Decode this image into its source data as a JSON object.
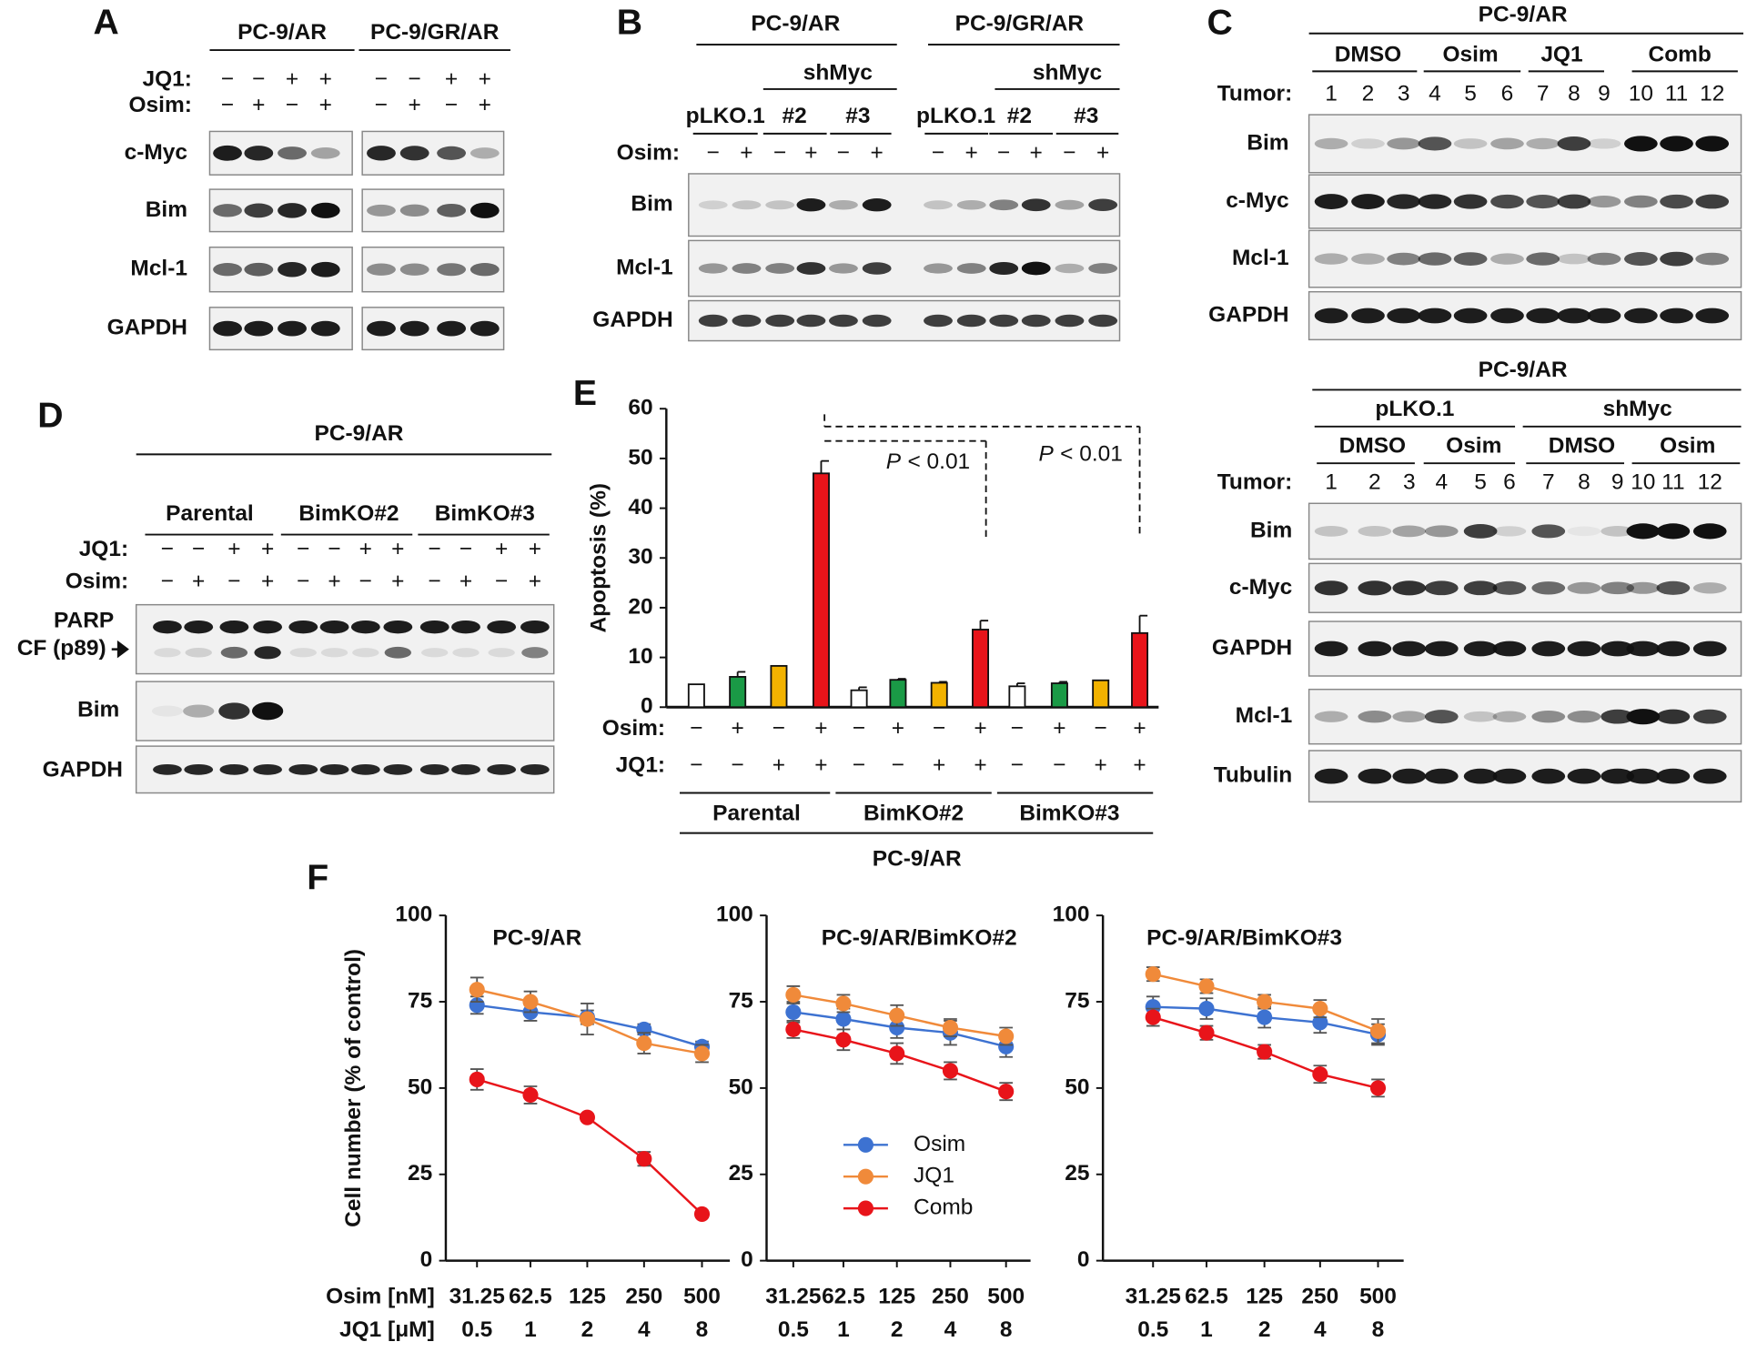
{
  "panel_labels": [
    "A",
    "B",
    "C",
    "D",
    "E",
    "F"
  ],
  "panel_a": {
    "groups": [
      "PC-9/AR",
      "PC-9/GR/AR"
    ],
    "row_labels": [
      "JQ1:",
      "Osim:"
    ],
    "jq1": [
      "−",
      "−",
      "+",
      "+",
      "−",
      "−",
      "+",
      "+"
    ],
    "osim": [
      "−",
      "+",
      "−",
      "+",
      "−",
      "+",
      "−",
      "+"
    ],
    "blots": [
      "c-Myc",
      "Bim",
      "Mcl-1",
      "GAPDH"
    ]
  },
  "panel_b": {
    "groups": [
      "PC-9/AR",
      "PC-9/GR/AR"
    ],
    "subgroups": [
      "shMyc",
      "shMyc"
    ],
    "constructs": [
      "pLKO.1",
      "#2",
      "#3",
      "pLKO.1",
      "#2",
      "#3"
    ],
    "row_label": "Osim:",
    "osim": [
      "−",
      "+",
      "−",
      "+",
      "−",
      "+",
      "−",
      "+",
      "−",
      "+",
      "−",
      "+"
    ],
    "blots": [
      "Bim",
      "Mcl-1",
      "GAPDH"
    ]
  },
  "panel_c_top": {
    "title": "PC-9/AR",
    "groups": [
      "DMSO",
      "Osim",
      "JQ1",
      "Comb"
    ],
    "row_label": "Tumor:",
    "tumors": [
      1,
      2,
      3,
      4,
      5,
      6,
      7,
      8,
      9,
      10,
      11,
      12
    ],
    "blots": [
      "Bim",
      "c-Myc",
      "Mcl-1",
      "GAPDH"
    ]
  },
  "panel_c_bottom": {
    "title": "PC-9/AR",
    "groups": [
      "pLKO.1",
      "shMyc"
    ],
    "treatments": [
      "DMSO",
      "Osim",
      "DMSO",
      "Osim"
    ],
    "row_label": "Tumor:",
    "tumors": [
      1,
      2,
      3,
      4,
      5,
      6,
      7,
      8,
      9,
      10,
      11,
      12
    ],
    "blots": [
      "Bim",
      "c-Myc",
      "GAPDH",
      "Mcl-1",
      "Tubulin"
    ]
  },
  "panel_d": {
    "title": "PC-9/AR",
    "groups": [
      "Parental",
      "BimKO#2",
      "BimKO#3"
    ],
    "row_labels": [
      "JQ1:",
      "Osim:"
    ],
    "jq1": [
      "−",
      "−",
      "+",
      "+",
      "−",
      "−",
      "+",
      "+",
      "−",
      "−",
      "+",
      "+"
    ],
    "osim": [
      "−",
      "+",
      "−",
      "+",
      "−",
      "+",
      "−",
      "+",
      "−",
      "+",
      "−",
      "+"
    ],
    "blots": [
      "PARP",
      "CF (p89)",
      "Bim",
      "GAPDH"
    ]
  },
  "chart_data": [
    {
      "type": "bar",
      "ylabel": "Apoptosis (%)",
      "values": [
        4.6,
        6.1,
        8.3,
        47,
        3.4,
        5.5,
        4.9,
        15.6,
        4.2,
        4.8,
        5.4,
        14.9
      ],
      "errors": [
        0,
        1.0,
        0,
        2.5,
        0.6,
        0.2,
        0.2,
        1.8,
        0.6,
        0.3,
        0,
        3.5
      ],
      "colors": [
        "#ffffff",
        "#1a9a46",
        "#f2b200",
        "#e8141a",
        "#ffffff",
        "#1a9a46",
        "#f2b200",
        "#e8141a",
        "#ffffff",
        "#1a9a46",
        "#f2b200",
        "#e8141a"
      ],
      "ylim": [
        0,
        60
      ],
      "yticks": [
        0,
        10,
        20,
        30,
        40,
        50,
        60
      ],
      "row_labels": [
        "Osim:",
        "JQ1:"
      ],
      "osim": [
        "−",
        "+",
        "−",
        "+",
        "−",
        "+",
        "−",
        "+",
        "−",
        "+",
        "−",
        "+"
      ],
      "jq1": [
        "−",
        "−",
        "+",
        "+",
        "−",
        "−",
        "+",
        "+",
        "−",
        "−",
        "+",
        "+"
      ],
      "groups": [
        "Parental",
        "BimKO#2",
        "BimKO#3"
      ],
      "group_title": "PC-9/AR",
      "annotations": [
        {
          "italic": "P",
          "text": "< 0.01"
        },
        {
          "italic": "P",
          "text": "< 0.01"
        }
      ]
    },
    {
      "type": "line",
      "title": "PC-9/AR",
      "ylabel": "Cell number (% of control)",
      "categories": [
        "31.25",
        "62.5",
        "125",
        "250",
        "500"
      ],
      "categories2": [
        "0.5",
        "1",
        "2",
        "4",
        "8"
      ],
      "series": [
        {
          "name": "Osim",
          "color": "#3d72d1",
          "values": [
            74,
            72,
            70.5,
            67,
            62
          ],
          "errors": [
            2.5,
            2.5,
            2,
            1.5,
            1.5
          ]
        },
        {
          "name": "JQ1",
          "color": "#f08a3a",
          "values": [
            78.5,
            75,
            70,
            63,
            60
          ],
          "errors": [
            3.5,
            3,
            4.5,
            3,
            2.5
          ]
        },
        {
          "name": "Comb",
          "color": "#e8141a",
          "values": [
            52.5,
            48,
            41.5,
            29.5,
            13.5
          ],
          "errors": [
            3,
            2.5,
            1,
            2,
            1
          ]
        }
      ],
      "ylim": [
        0,
        100
      ],
      "yticks": [
        0,
        25,
        50,
        75,
        100
      ]
    },
    {
      "type": "line",
      "title": "PC-9/AR/BimKO#2",
      "categories": [
        "31.25",
        "62.5",
        "125",
        "250",
        "500"
      ],
      "categories2": [
        "0.5",
        "1",
        "2",
        "4",
        "8"
      ],
      "series": [
        {
          "name": "Osim",
          "color": "#3d72d1",
          "values": [
            72,
            70,
            67.5,
            66,
            62
          ],
          "errors": [
            3,
            3,
            3,
            3.5,
            3
          ]
        },
        {
          "name": "JQ1",
          "color": "#f08a3a",
          "values": [
            77,
            74.5,
            71,
            67.5,
            65
          ],
          "errors": [
            2.5,
            2.5,
            3,
            2.5,
            2.5
          ]
        },
        {
          "name": "Comb",
          "color": "#e8141a",
          "values": [
            67,
            64,
            60,
            55,
            49
          ],
          "errors": [
            2.5,
            3,
            3,
            2.5,
            2.5
          ]
        }
      ],
      "ylim": [
        0,
        100
      ],
      "yticks": [
        0,
        25,
        50,
        75,
        100
      ],
      "legend": "center"
    },
    {
      "type": "line",
      "title": "PC-9/AR/BimKO#3",
      "categories": [
        "31.25",
        "62.5",
        "125",
        "250",
        "500"
      ],
      "categories2": [
        "0.5",
        "1",
        "2",
        "4",
        "8"
      ],
      "series": [
        {
          "name": "Osim",
          "color": "#3d72d1",
          "values": [
            73.5,
            73,
            70.5,
            69,
            65.5
          ],
          "errors": [
            3,
            3,
            3,
            3,
            3
          ]
        },
        {
          "name": "JQ1",
          "color": "#f08a3a",
          "values": [
            83,
            79.5,
            75,
            73,
            66.5
          ],
          "errors": [
            2,
            2,
            2,
            2.5,
            3.5
          ]
        },
        {
          "name": "Comb",
          "color": "#e8141a",
          "values": [
            70.5,
            66,
            60.5,
            54,
            50
          ],
          "errors": [
            2.5,
            2,
            2,
            2.5,
            2.5
          ]
        }
      ],
      "ylim": [
        0,
        100
      ],
      "yticks": [
        0,
        25,
        50,
        75,
        100
      ]
    }
  ],
  "panel_f_rows": [
    "Osim [nM]",
    "JQ1 [μM]"
  ]
}
